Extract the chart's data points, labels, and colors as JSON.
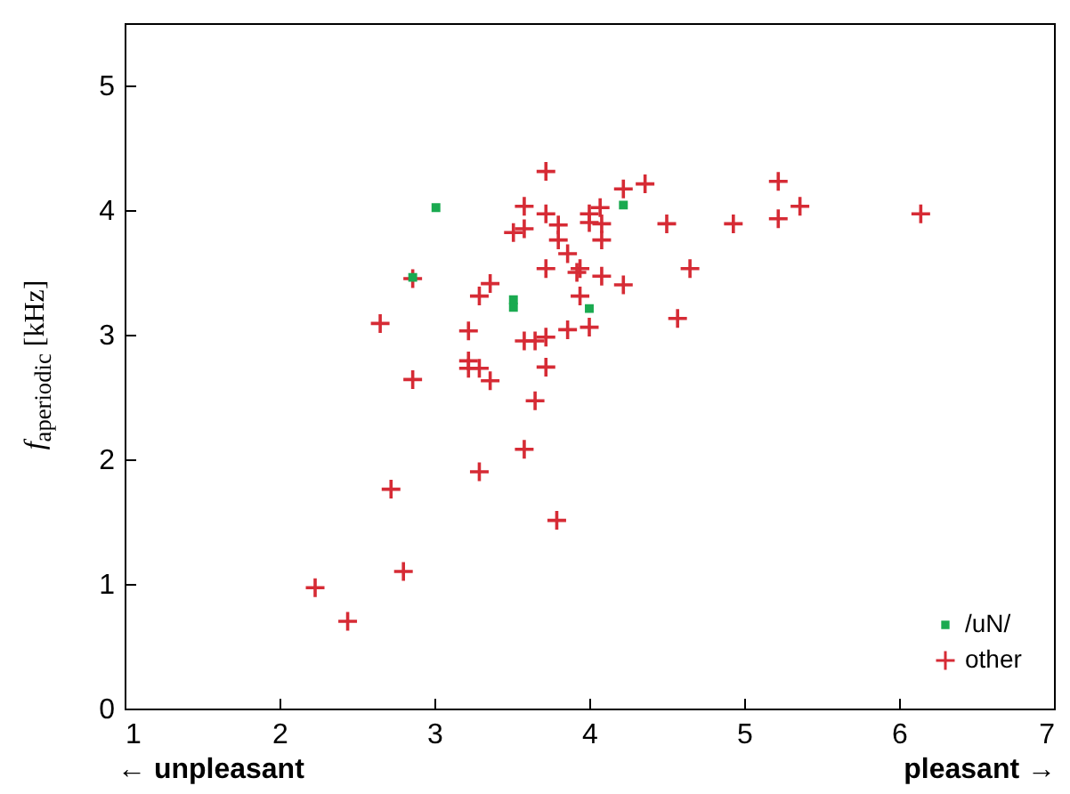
{
  "chart_data": {
    "type": "scatter",
    "ylabel": "f$_{aperiodic}$ [kHz]",
    "xlim": [
      1,
      7
    ],
    "xticks": [
      1,
      2,
      3,
      4,
      5,
      6,
      7
    ],
    "ylim": [
      0,
      5.5
    ],
    "yticks": [
      0,
      1,
      2,
      3,
      4,
      5
    ],
    "legend": "bottom right",
    "grid": false,
    "annotations": [
      "← unpleasant",
      "pleasant →"
    ],
    "series": [
      {
        "name": "/uN/",
        "color": "#1aaa50",
        "marker": "square",
        "x": [
          3.01,
          2.86,
          3.51,
          3.51,
          4.0,
          4.22
        ],
        "values": [
          4.02,
          3.46,
          3.28,
          3.22,
          3.21,
          4.04
        ]
      },
      {
        "name": "other",
        "color": "#d62b35",
        "marker": "cross",
        "x": [
          3.72,
          4.22,
          4.36,
          3.58,
          3.72,
          4.0,
          4.07,
          3.8,
          3.58,
          3.51,
          3.8,
          4.0,
          4.08,
          4.08,
          3.86,
          3.94,
          3.92,
          3.72,
          4.08,
          4.22,
          3.94,
          3.36,
          3.29,
          2.86,
          2.65,
          3.22,
          3.58,
          3.65,
          3.72,
          3.86,
          4.0,
          3.22,
          3.22,
          3.29,
          3.36,
          3.72,
          2.86,
          3.65,
          4.5,
          4.93,
          5.22,
          5.22,
          5.36,
          6.14,
          4.65,
          4.57,
          3.58,
          3.29,
          2.72,
          3.79,
          2.8,
          2.44,
          2.23
        ],
        "values": [
          4.31,
          4.17,
          4.21,
          4.03,
          3.97,
          3.97,
          4.02,
          3.88,
          3.85,
          3.82,
          3.76,
          3.9,
          3.89,
          3.76,
          3.65,
          3.53,
          3.5,
          3.53,
          3.47,
          3.4,
          3.31,
          3.41,
          3.31,
          3.45,
          3.09,
          3.03,
          2.95,
          2.95,
          2.98,
          3.04,
          3.06,
          2.79,
          2.73,
          2.73,
          2.63,
          2.74,
          2.64,
          2.47,
          3.89,
          3.89,
          4.23,
          3.93,
          4.03,
          3.97,
          3.53,
          3.13,
          2.08,
          1.9,
          1.76,
          1.51,
          1.1,
          0.7,
          0.97
        ]
      }
    ]
  }
}
